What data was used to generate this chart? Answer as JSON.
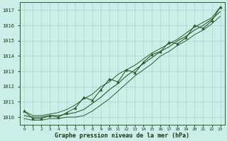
{
  "xlabel": "Graphe pression niveau de la mer (hPa)",
  "bg_color": "#cceee8",
  "grid_color": "#aad4cc",
  "line_color": "#2d5a2d",
  "x_labels": [
    "0",
    "1",
    "2",
    "3",
    "4",
    "5",
    "6",
    "7",
    "8",
    "9",
    "10",
    "11",
    "12",
    "13",
    "14",
    "15",
    "16",
    "17",
    "18",
    "19",
    "20",
    "21",
    "22",
    "23"
  ],
  "ylim": [
    1009.5,
    1017.5
  ],
  "yticks": [
    1010,
    1011,
    1012,
    1013,
    1014,
    1015,
    1016,
    1017
  ],
  "hours": [
    0,
    1,
    2,
    3,
    4,
    5,
    6,
    7,
    8,
    9,
    10,
    11,
    12,
    13,
    14,
    15,
    16,
    17,
    18,
    19,
    20,
    21,
    22,
    23
  ],
  "pressure_mean": [
    1010.1,
    1010.0,
    1010.0,
    1010.1,
    1010.1,
    1010.2,
    1010.3,
    1010.5,
    1010.9,
    1011.3,
    1011.8,
    1012.2,
    1012.7,
    1013.1,
    1013.5,
    1013.9,
    1014.3,
    1014.6,
    1015.0,
    1015.3,
    1015.7,
    1016.0,
    1016.4,
    1016.9
  ],
  "pressure_max": [
    1010.4,
    1010.1,
    1010.1,
    1010.2,
    1010.3,
    1010.5,
    1010.8,
    1011.2,
    1011.5,
    1012.0,
    1012.3,
    1012.8,
    1013.1,
    1013.4,
    1013.8,
    1014.2,
    1014.5,
    1014.8,
    1015.1,
    1015.5,
    1015.9,
    1016.2,
    1016.5,
    1017.2
  ],
  "pressure_min": [
    1009.9,
    1009.8,
    1009.8,
    1009.9,
    1009.9,
    1010.0,
    1010.0,
    1010.1,
    1010.4,
    1010.8,
    1011.2,
    1011.7,
    1012.2,
    1012.7,
    1013.1,
    1013.5,
    1014.0,
    1014.3,
    1014.7,
    1015.0,
    1015.4,
    1015.7,
    1016.1,
    1016.6
  ],
  "pressure_inst": [
    1010.4,
    1009.9,
    1009.9,
    1010.1,
    1010.0,
    1010.3,
    1010.6,
    1011.3,
    1011.1,
    1011.8,
    1012.5,
    1012.3,
    1013.1,
    1012.9,
    1013.6,
    1014.1,
    1014.3,
    1014.9,
    1014.8,
    1015.2,
    1016.0,
    1015.8,
    1016.3,
    1017.2
  ]
}
